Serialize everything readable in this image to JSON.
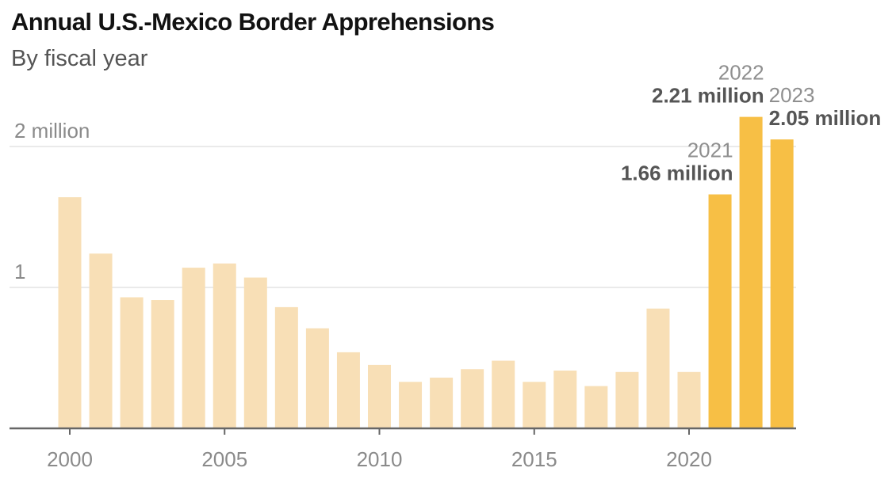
{
  "chart_data": {
    "type": "bar",
    "title": "Annual U.S.-Mexico Border Apprehensions",
    "subtitle": "By fiscal year",
    "xlabel": "",
    "ylabel": "",
    "ylim": [
      0,
      2.25
    ],
    "y_unit": "million",
    "grid": true,
    "y_ticks": [
      {
        "value": 1,
        "label": "1"
      },
      {
        "value": 2,
        "label": "2 million"
      }
    ],
    "x_ticks": [
      {
        "value": 2000,
        "label": "2000"
      },
      {
        "value": 2005,
        "label": "2005"
      },
      {
        "value": 2010,
        "label": "2010"
      },
      {
        "value": 2015,
        "label": "2015"
      },
      {
        "value": 2020,
        "label": "2020"
      }
    ],
    "categories": [
      2000,
      2001,
      2002,
      2003,
      2004,
      2005,
      2006,
      2007,
      2008,
      2009,
      2010,
      2011,
      2012,
      2013,
      2014,
      2015,
      2016,
      2017,
      2018,
      2019,
      2020,
      2021,
      2022,
      2023
    ],
    "values": [
      1.64,
      1.24,
      0.93,
      0.91,
      1.14,
      1.17,
      1.07,
      0.86,
      0.71,
      0.54,
      0.45,
      0.33,
      0.36,
      0.42,
      0.48,
      0.33,
      0.41,
      0.3,
      0.4,
      0.85,
      0.4,
      1.66,
      2.21,
      2.05
    ],
    "highlighted": [
      2021,
      2022,
      2023
    ],
    "annotations": [
      {
        "year": 2021,
        "year_label": "2021",
        "value_label": "1.66 million"
      },
      {
        "year": 2022,
        "year_label": "2022",
        "value_label": "2.21 million"
      },
      {
        "year": 2023,
        "year_label": "2023",
        "value_label": "2.05 million"
      }
    ],
    "colors": {
      "bar": "#f8dfb6",
      "highlight": "#f7bf45",
      "axis": "#666666",
      "grid": "#e3e3e3",
      "tick_text": "#8a8a8a",
      "annotation_year": "#8f8f8f",
      "annotation_value": "#555555"
    }
  }
}
